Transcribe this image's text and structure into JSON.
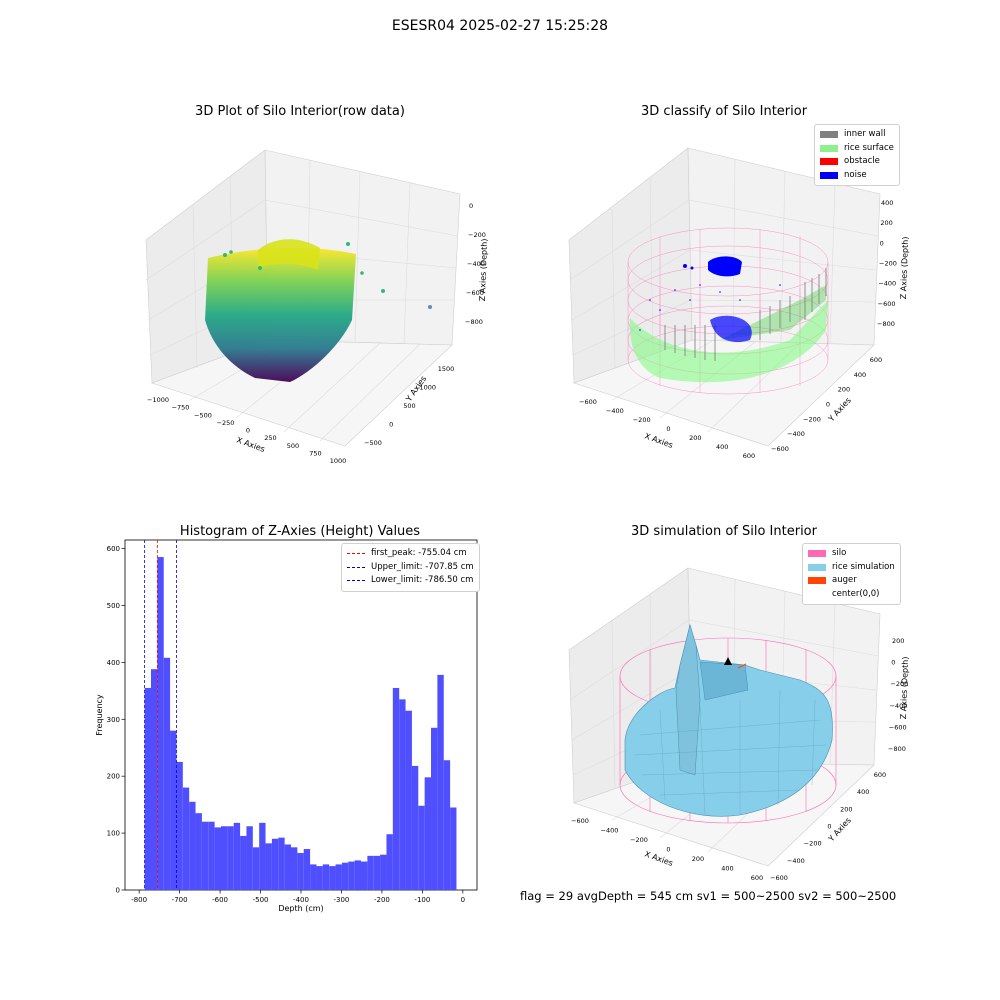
{
  "suptitle": "ESESR04 2025-02-27 15:25:28",
  "status_text": "flag = 29  avgDepth = 545 cm  sv1 = 500~2500  sv2 = 500~2500",
  "colors": {
    "hist_bar": "#4f4fff",
    "first_peak": "#ff0000",
    "limits": "#0000cc",
    "inner_wall": "#808080",
    "rice_surface": "#90ee90",
    "obstacle": "#ff0000",
    "noise": "#0000ff",
    "silo": "#ff69b4",
    "rice_simulation": "#87ceeb",
    "auger": "#ff4500"
  },
  "panels": {
    "raw": {
      "title": "3D Plot of Silo Interior(row data)",
      "x_label": "X Axies",
      "y_label": "Y Axies",
      "z_label": "Z Axies (Depth)",
      "x_ticks": [
        "−1000",
        "−750",
        "−500",
        "−250",
        "0",
        "250",
        "500",
        "750",
        "1000"
      ],
      "y_ticks": [
        "−500",
        "0",
        "500",
        "1000",
        "1500"
      ],
      "z_ticks": [
        "0",
        "−200",
        "−400",
        "−600",
        "−800"
      ]
    },
    "classify": {
      "title": "3D classify of Silo Interior",
      "x_label": "X Axies",
      "y_label": "Y Axies",
      "z_label": "Z Axies (Depth)",
      "x_ticks": [
        "−600",
        "−400",
        "−200",
        "0",
        "200",
        "400",
        "600"
      ],
      "y_ticks": [
        "−600",
        "−400",
        "−200",
        "0",
        "200",
        "400",
        "600"
      ],
      "z_ticks": [
        "400",
        "200",
        "0",
        "−200",
        "−400",
        "−600",
        "−800"
      ],
      "legend": [
        "inner wall",
        "rice surface",
        "obstacle",
        "noise"
      ]
    },
    "sim": {
      "title": "3D simulation of Silo Interior",
      "x_label": "X Axies",
      "y_label": "Y Axies",
      "z_label": "Z Axies (Depth)",
      "x_ticks": [
        "−600",
        "−400",
        "−200",
        "0",
        "200",
        "400",
        "600"
      ],
      "y_ticks": [
        "−600",
        "−400",
        "−200",
        "0",
        "200",
        "400",
        "600"
      ],
      "z_ticks": [
        "200",
        "0",
        "−200",
        "−400",
        "−600",
        "−800"
      ],
      "legend": [
        "silo",
        "rice simulation",
        "auger",
        "center(0,0)"
      ]
    }
  },
  "chart_data": {
    "type": "bar",
    "title": "Histogram of Z-Axies (Height) Values",
    "xlabel": "Depth (cm)",
    "ylabel": "Frequency",
    "xlim": [
      -835,
      35
    ],
    "ylim": [
      0,
      615
    ],
    "x_ticks": [
      -800,
      -700,
      -600,
      -500,
      -400,
      -300,
      -200,
      -100,
      0
    ],
    "y_ticks": [
      0,
      100,
      200,
      300,
      400,
      500,
      600
    ],
    "bin_start": -786.5,
    "bin_width": 15.73,
    "values": [
      355,
      388,
      585,
      408,
      280,
      225,
      180,
      155,
      135,
      120,
      120,
      110,
      112,
      112,
      118,
      95,
      112,
      75,
      118,
      82,
      90,
      92,
      80,
      75,
      65,
      72,
      45,
      42,
      45,
      42,
      45,
      48,
      50,
      52,
      50,
      60,
      60,
      62,
      98,
      355,
      335,
      315,
      218,
      148,
      198,
      285,
      378,
      228,
      145
    ],
    "lines": [
      {
        "label": "first_peak: -755.04 cm",
        "x": -755.04,
        "color": "#ff0000"
      },
      {
        "label": "Upper_limit: -707.85 cm",
        "x": -707.85,
        "color": "#0000cc"
      },
      {
        "label": "Lower_limit: -786.50 cm",
        "x": -786.5,
        "color": "#0000cc"
      }
    ],
    "legend_position": "top-right",
    "grid": false
  }
}
